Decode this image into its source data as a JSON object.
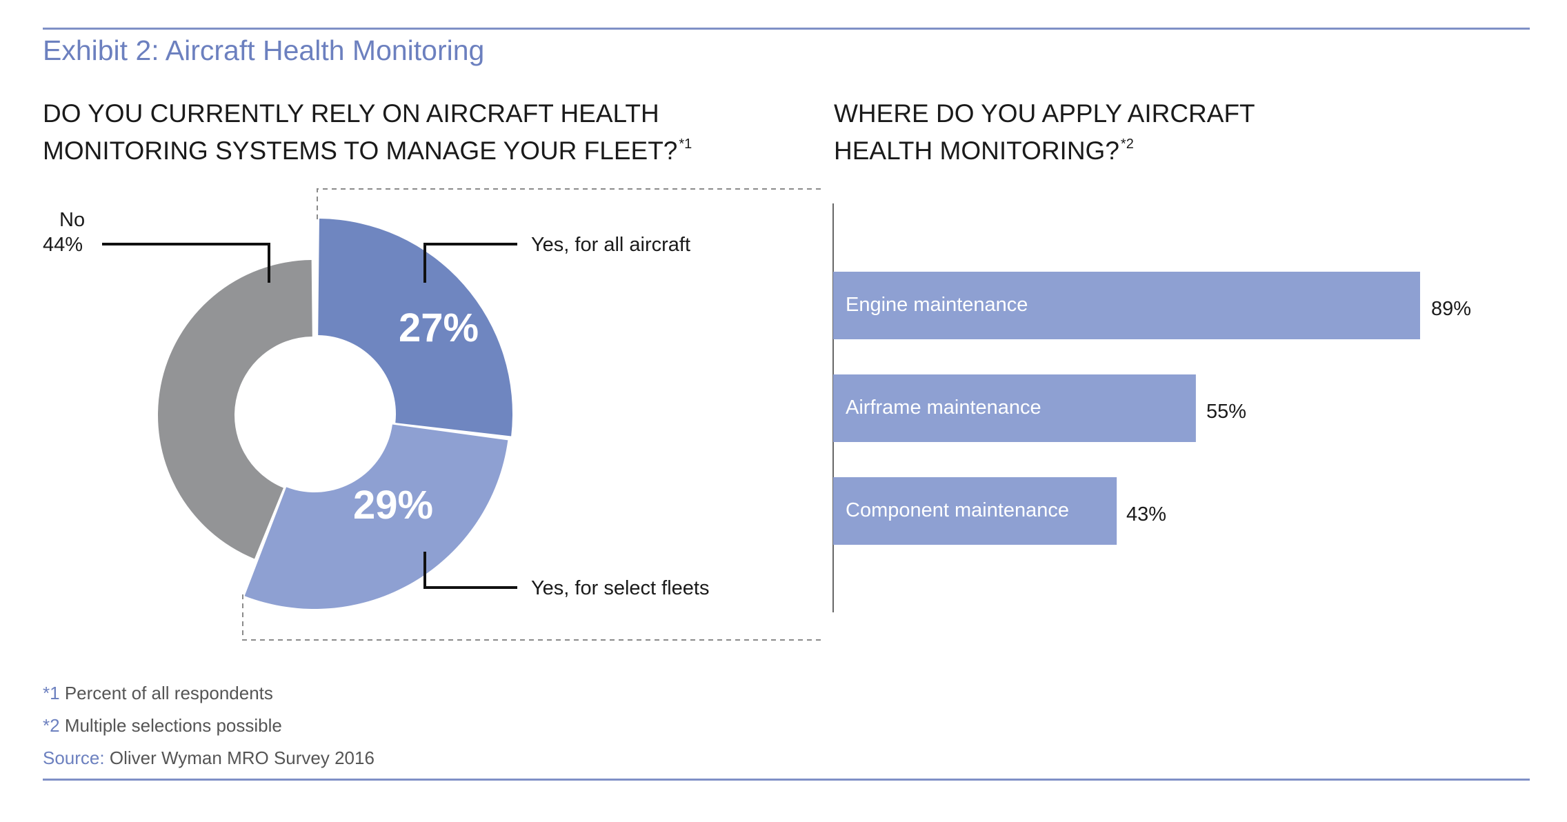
{
  "header": {
    "title": "Exhibit 2: Aircraft Health Monitoring"
  },
  "left_question": {
    "line1": "DO YOU CURRENTLY RELY ON AIRCRAFT HEALTH",
    "line2": "MONITORING SYSTEMS TO MANAGE YOUR FLEET?",
    "footnote_mark": "*1"
  },
  "right_question": {
    "line1": "WHERE DO YOU APPLY AIRCRAFT",
    "line2": "HEALTH MONITORING?",
    "footnote_mark": "*2"
  },
  "footnotes": [
    {
      "mark": "*1",
      "text": "Percent of all respondents"
    },
    {
      "mark": "*2",
      "text": "Multiple selections possible"
    }
  ],
  "source": {
    "label": "Source:",
    "text": "Oliver Wyman MRO Survey 2016"
  },
  "colors": {
    "accent": "#6c80bf",
    "rule": "#7f90c6",
    "yes_all": "#6f86c0",
    "yes_select": "#8ea0d2",
    "no": "#939496",
    "bar": "#8ea0d2"
  },
  "chart_data": [
    {
      "type": "pie",
      "variant": "donut",
      "categories": [
        "Yes, for all aircraft",
        "Yes, for select fleets",
        "No"
      ],
      "values": [
        27,
        29,
        44
      ],
      "value_labels": [
        "27%",
        "29%",
        "44%"
      ],
      "label_text": {
        "no_name": "No",
        "no_value": "44%"
      }
    },
    {
      "type": "bar",
      "orientation": "horizontal",
      "categories": [
        "Engine maintenance",
        "Airframe maintenance",
        "Component maintenance"
      ],
      "values": [
        89,
        55,
        43
      ],
      "value_labels": [
        "89%",
        "55%",
        "43%"
      ],
      "xlim": [
        0,
        100
      ]
    }
  ]
}
